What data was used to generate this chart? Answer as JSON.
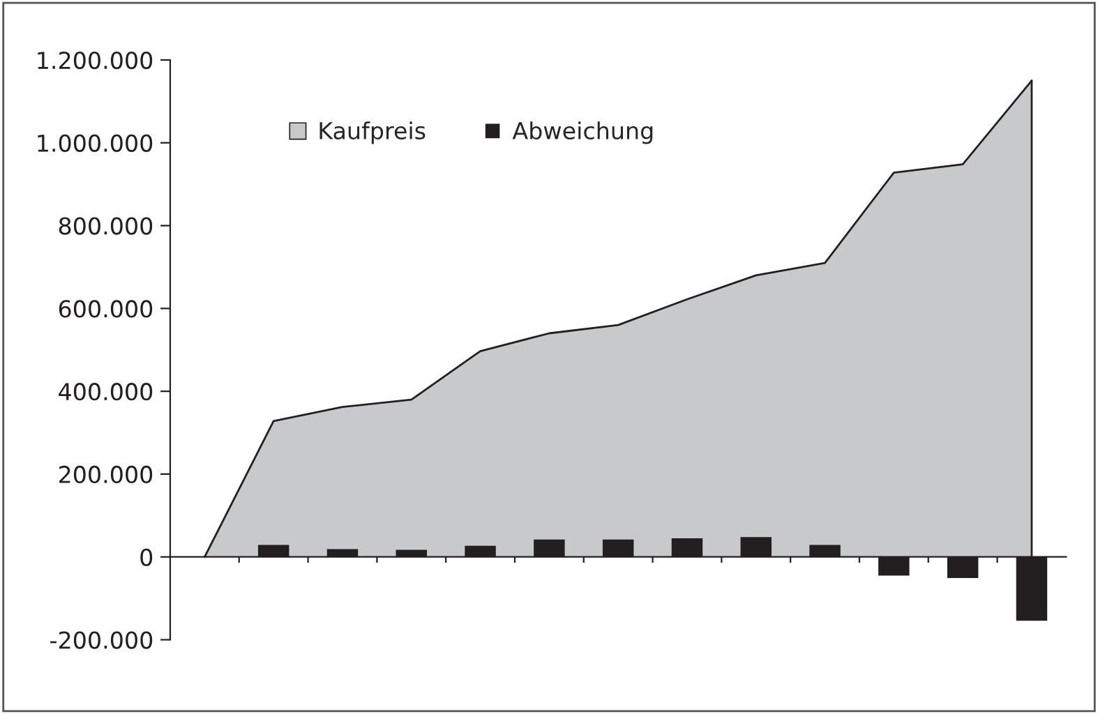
{
  "chart_data": {
    "type": "bar",
    "categories": [
      null,
      null,
      null,
      null,
      null,
      null,
      null,
      null,
      null,
      null,
      null,
      null,
      null
    ],
    "series": [
      {
        "name": "Kaufpreis",
        "type": "area",
        "color": "#c8c9cb",
        "values": [
          0,
          328000,
          362000,
          380000,
          497000,
          540000,
          560000,
          622000,
          680000,
          710000,
          928000,
          948000,
          1150000
        ]
      },
      {
        "name": "Abweichung",
        "color": "#231f20",
        "values": [
          null,
          29000,
          19000,
          17000,
          27000,
          42000,
          42000,
          45000,
          48000,
          29000,
          -45000,
          -51000,
          -154000
        ]
      }
    ],
    "ylim": [
      -200000,
      1200000
    ],
    "yticks": [
      {
        "value": -200000,
        "label": "-200.000"
      },
      {
        "value": 0,
        "label": "0"
      },
      {
        "value": 200000,
        "label": "200.000"
      },
      {
        "value": 400000,
        "label": "400.000"
      },
      {
        "value": 600000,
        "label": "600.000"
      },
      {
        "value": 800000,
        "label": "800.000"
      },
      {
        "value": 1000000,
        "label": "1.000.000"
      },
      {
        "value": 1200000,
        "label": "1.200.000"
      }
    ],
    "tick_labels": "y",
    "grid": false,
    "legend": "top left"
  }
}
